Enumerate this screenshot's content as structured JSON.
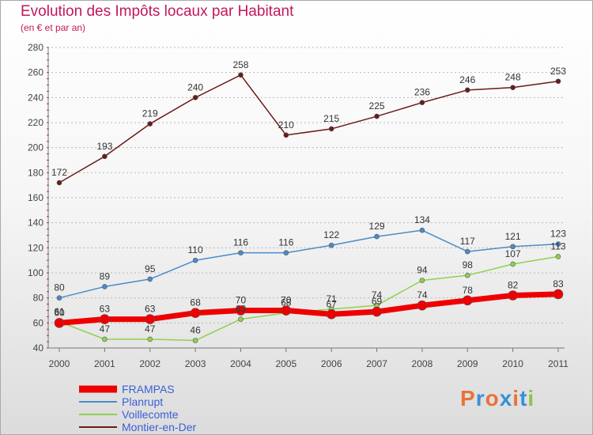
{
  "header": {
    "title": "Evolution des Impôts locaux par Habitant",
    "subtitle": "(en € et par an)"
  },
  "logo": {
    "text": "Proxiti",
    "colors": [
      "#e8733a",
      "#3b8fd6",
      "#e8733a",
      "#3b8fd6",
      "#e8733a",
      "#3b8fd6",
      "#8bc34a"
    ]
  },
  "chart_data": {
    "type": "line",
    "title": "Evolution des Impôts locaux par Habitant",
    "subtitle": "(en € et par an)",
    "xlabel": "",
    "ylabel": "",
    "categories": [
      "2000",
      "2001",
      "2002",
      "2003",
      "2004",
      "2005",
      "2006",
      "2007",
      "2008",
      "2009",
      "2010",
      "2011"
    ],
    "ylim": [
      40,
      280
    ],
    "yticks": [
      40,
      60,
      80,
      100,
      120,
      140,
      160,
      180,
      200,
      220,
      240,
      260,
      280
    ],
    "grid": "horizontal dashed",
    "legend": "bottom-left",
    "series": [
      {
        "name": "Montier-en-Der",
        "color": "#6b1a1a",
        "values": [
          172,
          193,
          219,
          240,
          258,
          210,
          215,
          225,
          236,
          246,
          248,
          253
        ]
      },
      {
        "name": "Planrupt",
        "color": "#4a8cc8",
        "values": [
          80,
          89,
          95,
          110,
          116,
          116,
          122,
          129,
          134,
          117,
          121,
          123
        ]
      },
      {
        "name": "Voillecomte",
        "color": "#8fd14f",
        "values": [
          61,
          47,
          47,
          46,
          63,
          68,
          71,
          74,
          94,
          98,
          107,
          113
        ]
      },
      {
        "name": "FRAMPAS",
        "color": "#ee0000",
        "values": [
          60,
          63,
          63,
          68,
          70,
          70,
          67,
          69,
          74,
          78,
          82,
          83
        ]
      }
    ],
    "legend_order": [
      "FRAMPAS",
      "Planrupt",
      "Voillecomte",
      "Montier-en-Der"
    ]
  }
}
